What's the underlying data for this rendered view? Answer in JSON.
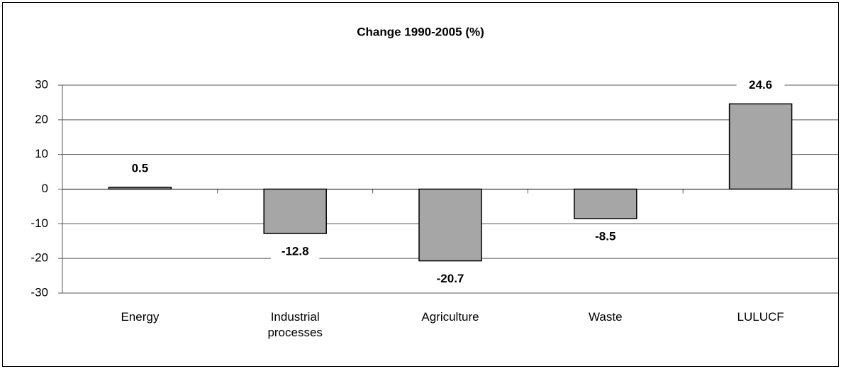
{
  "chart_data": {
    "type": "bar",
    "title": "Change 1990-2005 (%)",
    "categories": [
      "Energy",
      "Industrial processes",
      "Agriculture",
      "Waste",
      "LULUCF"
    ],
    "values": [
      0.5,
      -12.8,
      -20.7,
      -8.5,
      24.6
    ],
    "color": "#a6a6a6",
    "ylim": [
      -30,
      30
    ],
    "yticks": [
      -30,
      -20,
      -10,
      0,
      10,
      20,
      30
    ],
    "grid": true
  }
}
